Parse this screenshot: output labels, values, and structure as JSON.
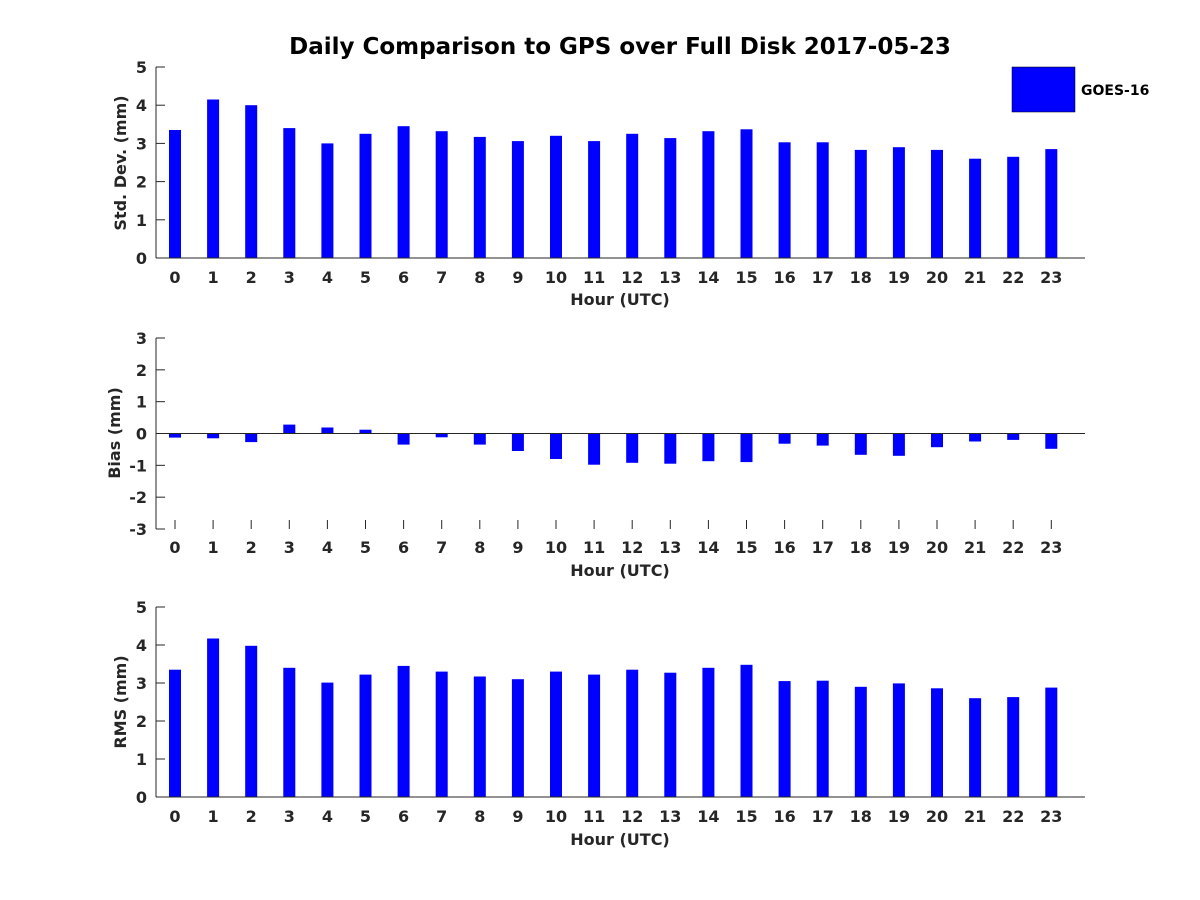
{
  "chart_data": [
    {
      "type": "bar",
      "title": "Daily Comparison to GPS over Full Disk 2017-05-23",
      "xlabel": "Hour (UTC)",
      "ylabel": "Std. Dev. (mm)",
      "ylim": [
        0,
        5
      ],
      "yticks": [
        0,
        1,
        2,
        3,
        4,
        5
      ],
      "categories": [
        "0",
        "1",
        "2",
        "3",
        "4",
        "5",
        "6",
        "7",
        "8",
        "9",
        "10",
        "11",
        "12",
        "13",
        "14",
        "15",
        "16",
        "17",
        "18",
        "19",
        "20",
        "21",
        "22",
        "23"
      ],
      "series": [
        {
          "name": "GOES-16",
          "color": "#0000ff",
          "values": [
            3.35,
            4.15,
            4.0,
            3.4,
            3.0,
            3.25,
            3.45,
            3.32,
            3.17,
            3.06,
            3.2,
            3.06,
            3.25,
            3.14,
            3.32,
            3.37,
            3.03,
            3.03,
            2.83,
            2.9,
            2.83,
            2.6,
            2.65,
            2.85
          ]
        }
      ],
      "legend": {
        "label": "GOES-16",
        "color": "#0000ff",
        "placement": "top-right"
      }
    },
    {
      "type": "bar",
      "xlabel": "Hour (UTC)",
      "ylabel": "Bias (mm)",
      "ylim": [
        -3,
        3
      ],
      "yticks": [
        -3,
        -2,
        -1,
        0,
        1,
        2,
        3
      ],
      "categories": [
        "0",
        "1",
        "2",
        "3",
        "4",
        "5",
        "6",
        "7",
        "8",
        "9",
        "10",
        "11",
        "12",
        "13",
        "14",
        "15",
        "16",
        "17",
        "18",
        "19",
        "20",
        "21",
        "22",
        "23"
      ],
      "series": [
        {
          "name": "GOES-16",
          "color": "#0000ff",
          "values": [
            -0.13,
            -0.15,
            -0.27,
            0.28,
            0.19,
            0.12,
            -0.35,
            -0.12,
            -0.35,
            -0.55,
            -0.8,
            -0.98,
            -0.92,
            -0.95,
            -0.87,
            -0.9,
            -0.32,
            -0.38,
            -0.67,
            -0.7,
            -0.43,
            -0.25,
            -0.2,
            -0.48
          ]
        }
      ]
    },
    {
      "type": "bar",
      "xlabel": "Hour (UTC)",
      "ylabel": "RMS (mm)",
      "ylim": [
        0,
        5
      ],
      "yticks": [
        0,
        1,
        2,
        3,
        4,
        5
      ],
      "categories": [
        "0",
        "1",
        "2",
        "3",
        "4",
        "5",
        "6",
        "7",
        "8",
        "9",
        "10",
        "11",
        "12",
        "13",
        "14",
        "15",
        "16",
        "17",
        "18",
        "19",
        "20",
        "21",
        "22",
        "23"
      ],
      "series": [
        {
          "name": "GOES-16",
          "color": "#0000ff",
          "values": [
            3.35,
            4.17,
            3.98,
            3.4,
            3.01,
            3.22,
            3.45,
            3.3,
            3.17,
            3.1,
            3.3,
            3.22,
            3.35,
            3.27,
            3.4,
            3.48,
            3.05,
            3.06,
            2.9,
            2.99,
            2.86,
            2.6,
            2.63,
            2.88
          ]
        }
      ]
    }
  ]
}
